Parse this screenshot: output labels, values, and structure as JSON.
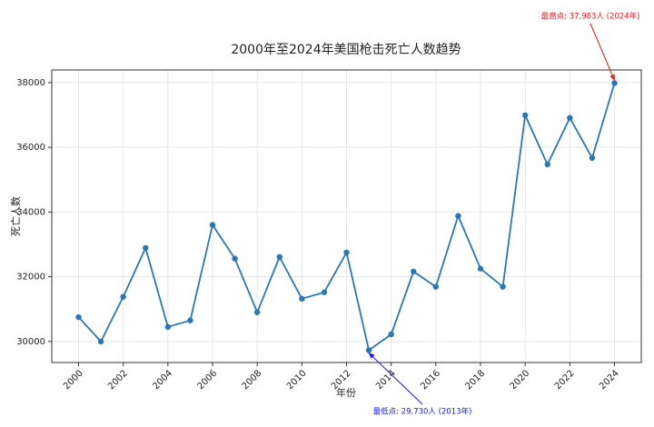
{
  "chart_data": {
    "type": "line",
    "title": "2000年至2024年美国枪击死亡人数趋势",
    "x_label": "年份",
    "y_label": "死亡人数",
    "x": [
      2000,
      2001,
      2002,
      2003,
      2004,
      2005,
      2006,
      2007,
      2008,
      2009,
      2010,
      2011,
      2012,
      2013,
      2014,
      2015,
      2016,
      2017,
      2018,
      2019,
      2020,
      2021,
      2022,
      2023,
      2024
    ],
    "values": [
      30750,
      30000,
      31380,
      32890,
      30450,
      30650,
      33600,
      32560,
      30900,
      32610,
      31320,
      31520,
      32750,
      29730,
      30220,
      32160,
      31690,
      33880,
      32250,
      31690,
      36990,
      35470,
      36910,
      35670,
      37983
    ],
    "color": "#2a77b4",
    "xlim": [
      1998.8,
      2025.2
    ],
    "xticks": [
      2000,
      2002,
      2004,
      2006,
      2008,
      2010,
      2012,
      2014,
      2016,
      2018,
      2020,
      2022,
      2024
    ],
    "ylim": [
      29350,
      38390
    ],
    "yticks": [
      30000,
      32000,
      34000,
      36000,
      38000
    ],
    "grid": true,
    "annotations": [
      {
        "text": "最高点: 37,983人 (2024年)",
        "color": "#e02020"
      },
      {
        "text": "最低点: 29,730人 (2013年)",
        "color": "#1a1aee"
      }
    ]
  }
}
